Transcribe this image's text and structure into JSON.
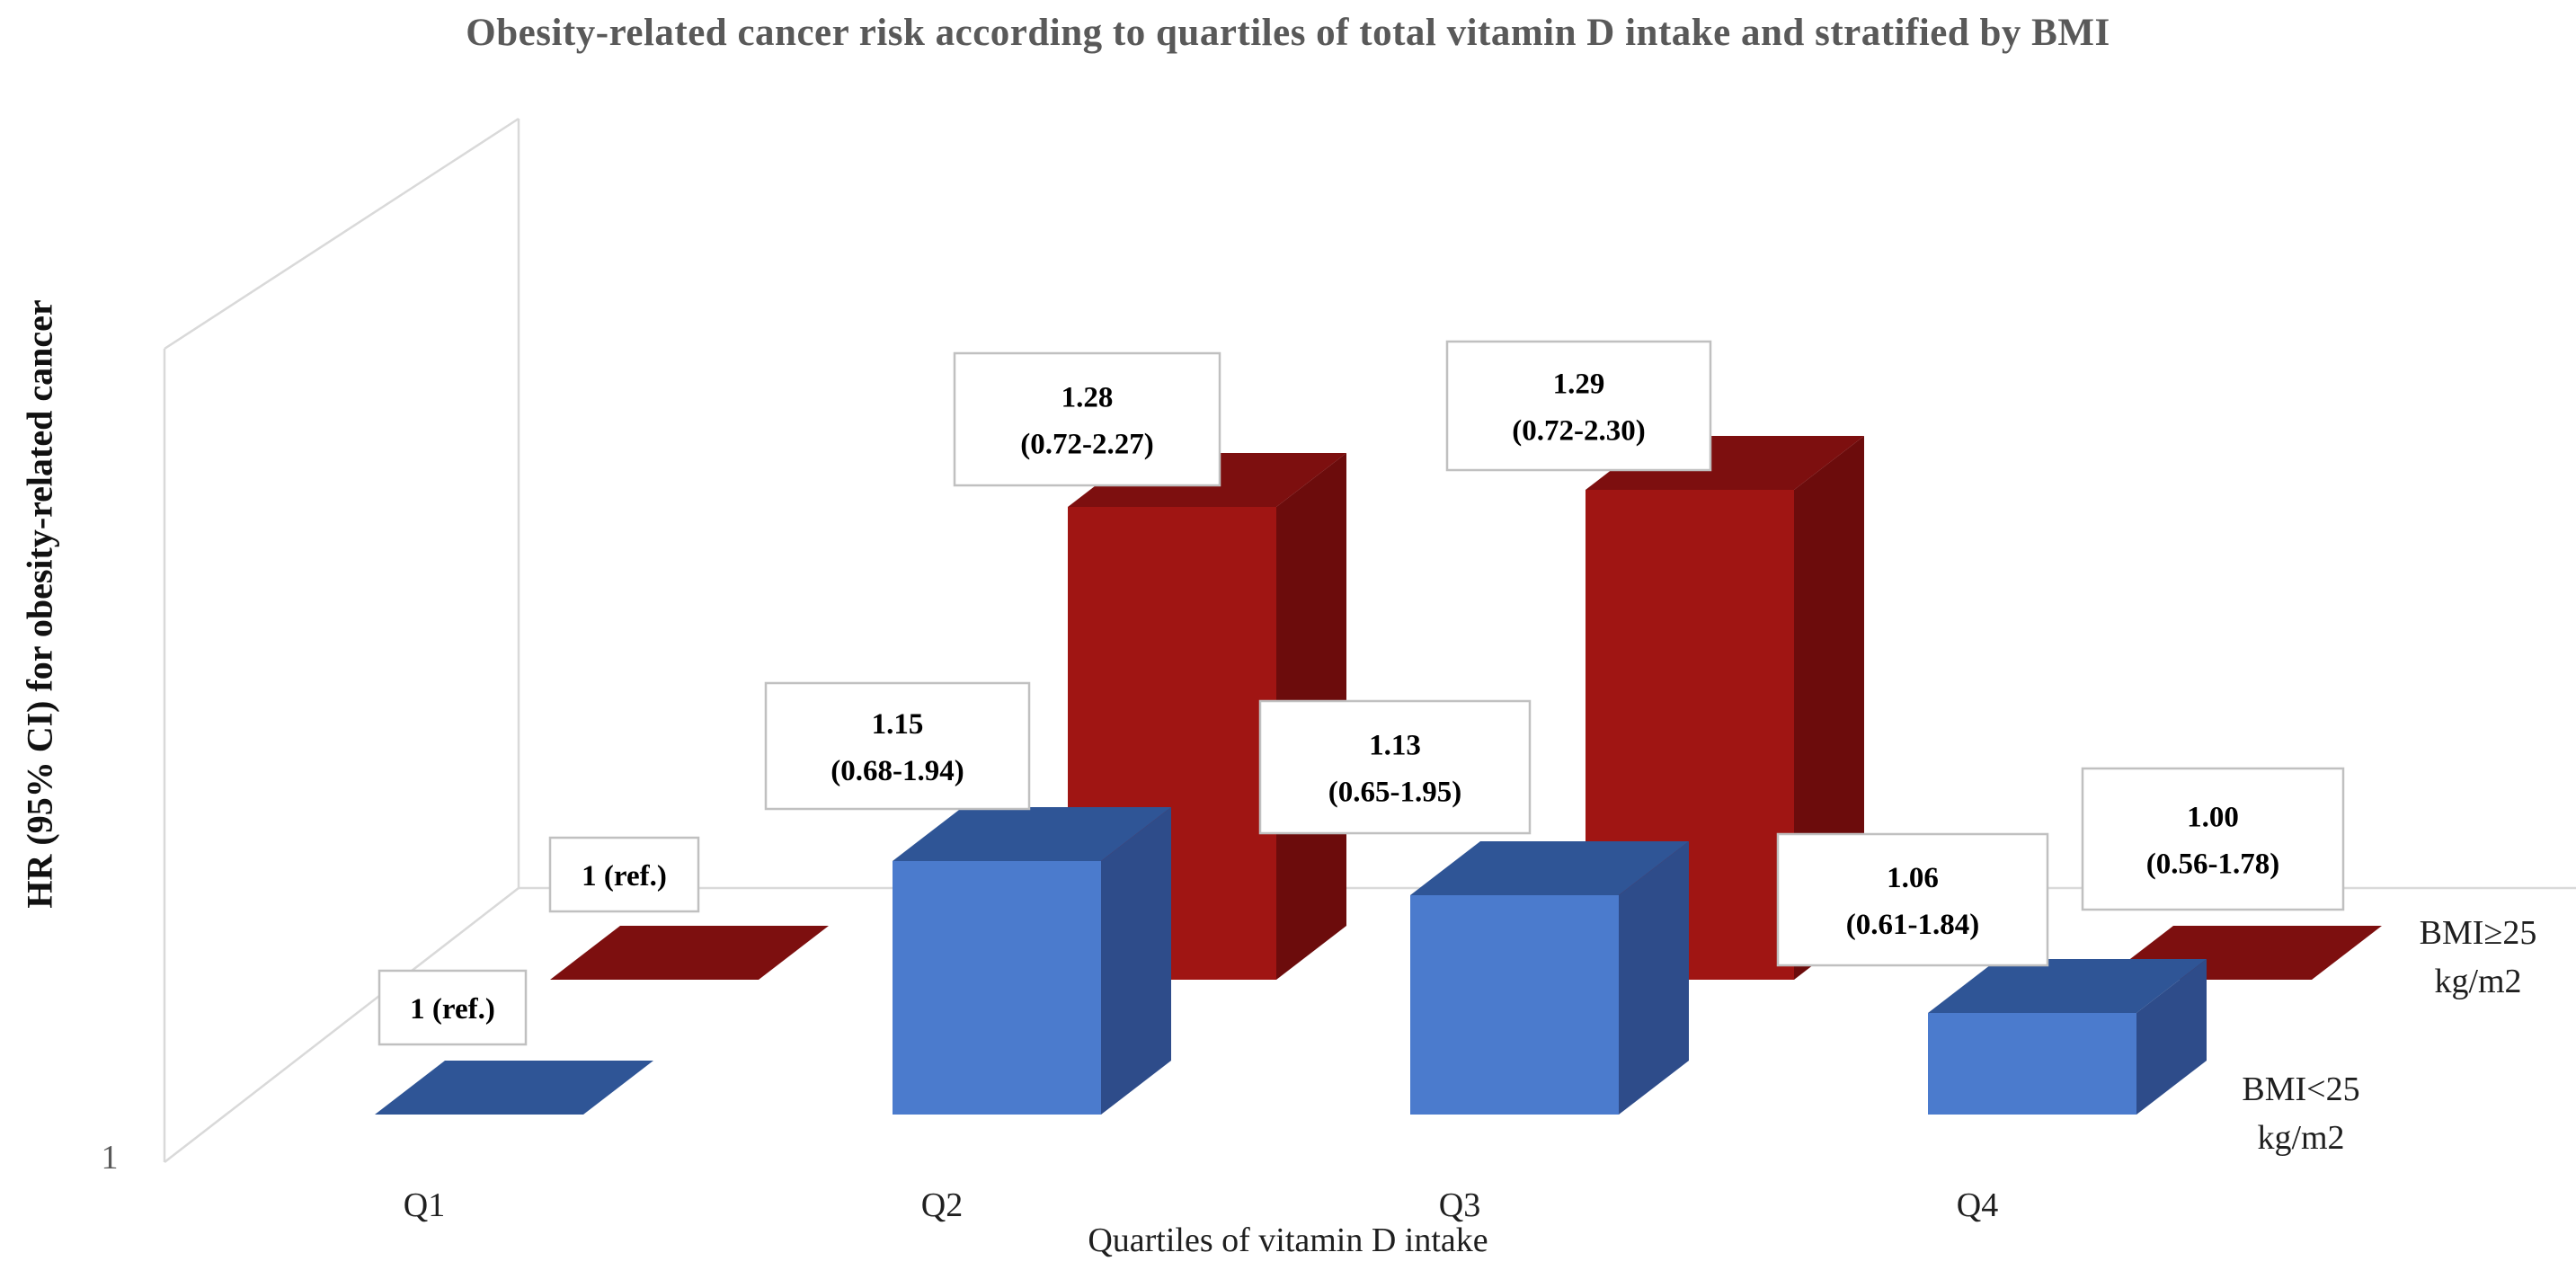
{
  "figure": {
    "background": "#FFFFFF",
    "frame_line_color": "#D9D9D9",
    "label_box_border_color": "#C0C0C0",
    "title_color": "#595959",
    "text_color": "#1F1F1F"
  },
  "chart_data": {
    "type": "bar",
    "variant": "3d-clustered-column",
    "title": "Obesity-related cancer risk according to quartiles of total vitamin D intake and stratified by BMI",
    "xlabel": "Quartiles of vitamin D intake",
    "ylabel": "HR (95% CI) for obesity-related cancer",
    "baseline_tick": "1",
    "ylim": [
      1,
      1.45
    ],
    "grid": false,
    "legend_position": "right-of-each-row",
    "categories": [
      "Q1",
      "Q2",
      "Q3",
      "Q4"
    ],
    "series": [
      {
        "name": "BMI<25 kg/m2",
        "name_lines": [
          "BMI<25",
          "kg/m2"
        ],
        "row": "front",
        "colors": {
          "front": "#4B7BCD",
          "top": "#2F5596",
          "side": "#2E4C8A"
        },
        "values": [
          1.0,
          1.15,
          1.13,
          1.06
        ],
        "point_labels": [
          [
            "1 (ref.)"
          ],
          [
            "1.15",
            "(0.68-1.94)"
          ],
          [
            "1.13",
            "(0.65-1.95)"
          ],
          [
            "1.06",
            "(0.61-1.84)"
          ]
        ]
      },
      {
        "name": "BMI≥25 kg/m2",
        "name_lines": [
          "BMI≥25",
          "kg/m2"
        ],
        "row": "back",
        "colors": {
          "front": "#A01513",
          "top": "#7D0F0F",
          "side": "#6C0C0C"
        },
        "values": [
          1.0,
          1.28,
          1.29,
          1.0
        ],
        "point_labels": [
          [
            "1 (ref.)"
          ],
          [
            "1.28",
            "(0.72-2.27)"
          ],
          [
            "1.29",
            "(0.72-2.30)"
          ],
          [
            "1.00",
            "(0.56-1.78)"
          ]
        ]
      }
    ]
  }
}
